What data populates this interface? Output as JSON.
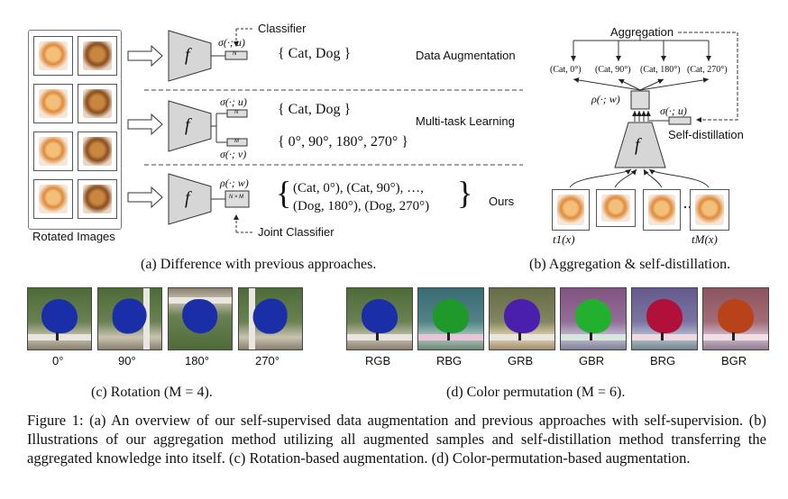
{
  "panel_a": {
    "left_label": "Rotated Images",
    "f_label": "f",
    "rows": [
      {
        "classifier_top": "σ(·; u)",
        "box_text": "N",
        "pointer_label": "Classifier",
        "set_text": "{ Cat, Dog }",
        "method": "Data Augmentation"
      },
      {
        "classifier_top": "σ(·; u)",
        "box_top": "N",
        "classifier_bottom": "σ(·; v)",
        "box_bottom": "M",
        "set_top": "{ Cat, Dog }",
        "set_bottom": "{ 0°, 90°, 180°, 270° }",
        "method": "Multi-task Learning"
      },
      {
        "classifier_top": "ρ(·; w)",
        "box_text": "N × M",
        "pointer_label": "Joint Classifier",
        "set_line1": "(Cat, 0°), (Cat, 90°), …,",
        "set_line2": "(Dog, 180°), (Dog, 270°)",
        "method": "Ours"
      }
    ],
    "caption": "(a) Difference with previous approaches."
  },
  "panel_b": {
    "aggregation": "Aggregation",
    "outputs": [
      "(Cat, 0°)",
      "(Cat, 90°)",
      "(Cat, 180°)",
      "(Cat, 270°)"
    ],
    "rho": "ρ(·; w)",
    "sigma": "σ(·; u)",
    "self_distillation": "Self-distillation",
    "f_label": "f",
    "t1": "t1(x)",
    "tM": "tM(x)",
    "caption": "(b) Aggregation & self-distillation."
  },
  "panel_c": {
    "labels": [
      "0°",
      "90°",
      "180°",
      "270°"
    ],
    "caption": "(c) Rotation (M = 4)."
  },
  "panel_d": {
    "labels": [
      "RGB",
      "RBG",
      "GRB",
      "GBR",
      "BRG",
      "BGR"
    ],
    "colors": [
      "#1a2ea8",
      "#1f9a2a",
      "#4a1fae",
      "#22b02e",
      "#b0103a",
      "#b8421a"
    ],
    "caption": "(d) Color permutation (M = 6)."
  },
  "figure_caption": "Figure 1: (a) An overview of our self-supervised data augmentation and previous approaches with self-supervision. (b) Illustrations of our aggregation method utilizing all augmented samples and self-distillation method transferring the aggregated knowledge into itself. (c) Rotation-based augmentation. (d) Color-permutation-based augmentation."
}
